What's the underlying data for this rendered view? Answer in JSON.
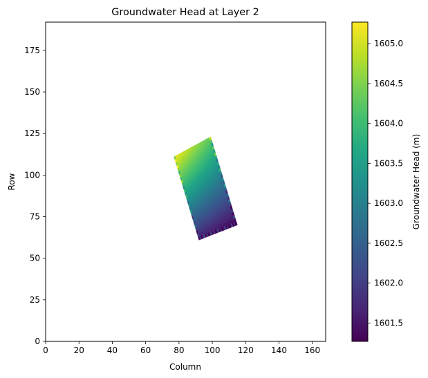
{
  "chart_data": {
    "type": "heatmap",
    "title": "Groundwater Head at Layer 2",
    "xlabel": "Column",
    "ylabel": "Row",
    "xlim": [
      0,
      168
    ],
    "ylim": [
      0,
      192
    ],
    "x_ticks": [
      0,
      20,
      40,
      60,
      80,
      100,
      120,
      140,
      160
    ],
    "y_ticks": [
      0,
      25,
      50,
      75,
      100,
      125,
      150,
      175
    ],
    "colormap": "viridis",
    "grid": false,
    "colorbar": {
      "label": "Groundwater Head (m)",
      "range": [
        1601.27,
        1605.27
      ],
      "ticks": [
        1601.5,
        1602.0,
        1602.5,
        1603.0,
        1603.5,
        1604.0,
        1604.5,
        1605.0
      ],
      "tick_labels": [
        "1601.5",
        "1602.0",
        "1602.5",
        "1603.0",
        "1603.5",
        "1604.0",
        "1604.5",
        "1605.0"
      ]
    },
    "active_region": {
      "description_points": [
        [
          77,
          111
        ],
        [
          99,
          123
        ],
        [
          115,
          70
        ],
        [
          92,
          61
        ]
      ],
      "corner_heads": {
        "top_left": 1605.2,
        "top_right": 1604.3,
        "bottom_right": 1601.3,
        "bottom_left": 1601.6
      }
    }
  }
}
